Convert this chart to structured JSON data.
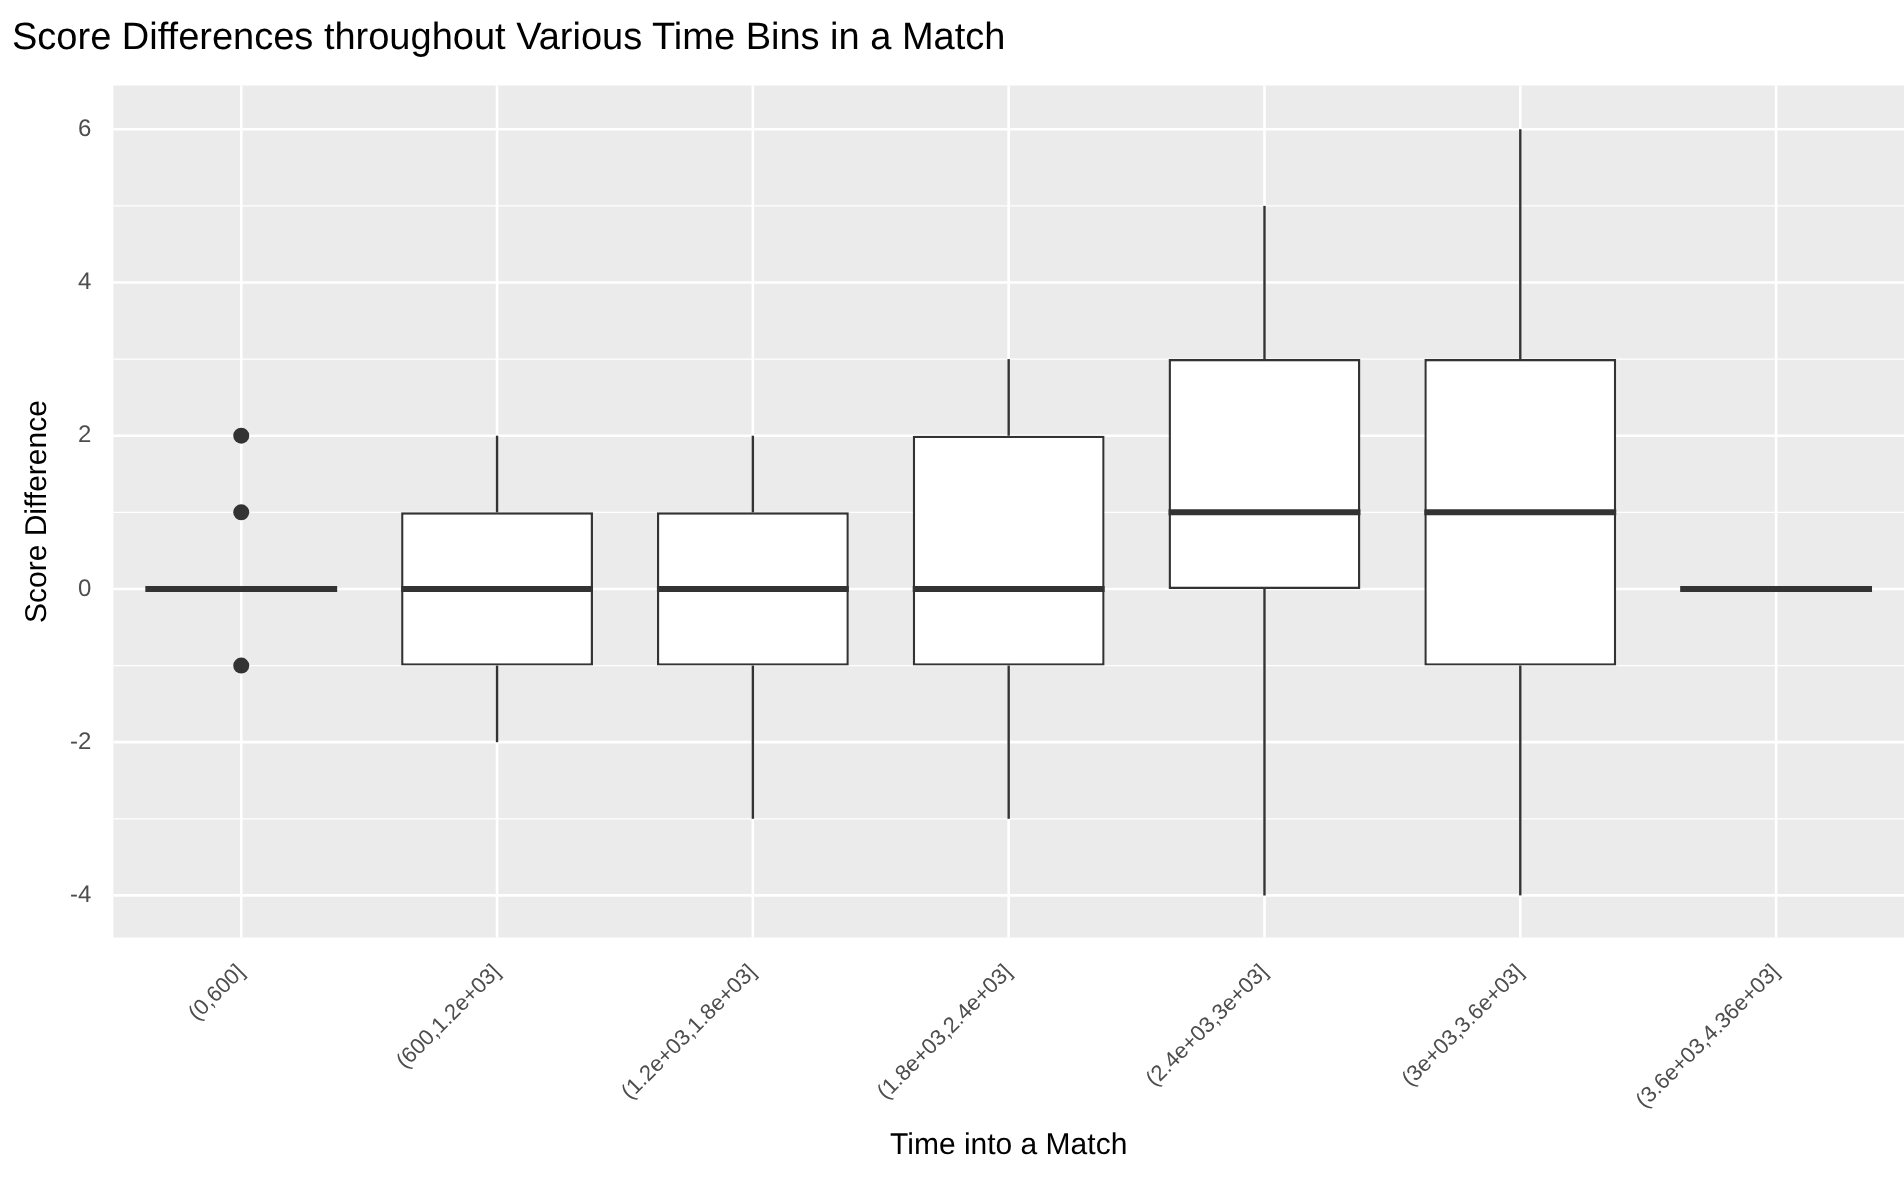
{
  "chart_data": {
    "type": "box",
    "title": "Score Differences throughout Various Time Bins in a Match",
    "xlabel": "Time into a Match",
    "ylabel": "Score Difference",
    "categories": [
      "(0,600]",
      "(600,1.2e+03]",
      "(1.2e+03,1.8e+03]",
      "(1.8e+03,2.4e+03]",
      "(2.4e+03,3e+03]",
      "(3e+03,3.6e+03]",
      "(3.6e+03,4.36e+03]"
    ],
    "boxes": [
      {
        "low": 0,
        "q1": 0,
        "median": 0,
        "q3": 0,
        "high": 0,
        "outliers": [
          2,
          1,
          -1
        ]
      },
      {
        "low": -2,
        "q1": -1,
        "median": 0,
        "q3": 1,
        "high": 2
      },
      {
        "low": -3,
        "q1": -1,
        "median": 0,
        "q3": 1,
        "high": 2
      },
      {
        "low": -3,
        "q1": -1,
        "median": 0,
        "q3": 2,
        "high": 3
      },
      {
        "low": -4,
        "q1": 0,
        "median": 1,
        "q3": 3,
        "high": 5
      },
      {
        "low": -4,
        "q1": -1,
        "median": 1,
        "q3": 3,
        "high": 6
      },
      {
        "low": 0,
        "q1": 0,
        "median": 0,
        "q3": 0,
        "high": 0
      }
    ],
    "color": "#333333",
    "ylim": [
      -4.55,
      6.57
    ],
    "yticks": [
      -4,
      -2,
      0,
      2,
      4,
      6
    ],
    "grid": true,
    "legend": false
  }
}
